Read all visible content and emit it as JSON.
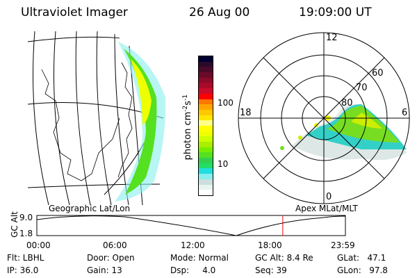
{
  "header": {
    "instrument": "Ultraviolet Imager",
    "date": "26 Aug 00",
    "time": "19:09:00 UT"
  },
  "colorbar": {
    "label": "photon cm",
    "label_exp1": "-2",
    "label_mid": "s",
    "label_exp2": "-1",
    "ticks": [
      "100",
      "10"
    ],
    "colors": [
      "#000033",
      "#2a0a2a",
      "#4a0a2a",
      "#6a0a2a",
      "#8a0a2a",
      "#aa0a2a",
      "#cc0a2a",
      "#ff0000",
      "#ff7700",
      "#ffa500",
      "#ffc800",
      "#ffe600",
      "#ffff88",
      "#ffff00",
      "#eeff00",
      "#ccff00",
      "#aaee00",
      "#77ee00",
      "#55e020",
      "#33d050",
      "#22dd66",
      "#22dddd",
      "#88eeee",
      "#ccdede",
      "#e8f4ee",
      "#ffffff"
    ]
  },
  "left_map": {
    "label": "Geographic Lat/Lon"
  },
  "polar": {
    "label": "Apex MLat/MLT",
    "mlt_labels": [
      "12",
      "0",
      "18",
      "6"
    ],
    "lat_labels": [
      "80",
      "70",
      "60"
    ]
  },
  "altitude_plot": {
    "ylabel": "GC Alt",
    "yticks": [
      "9.0",
      "1.8"
    ],
    "xticks": [
      "00:00",
      "06:00",
      "12:00",
      "18:00",
      "23:59"
    ],
    "current_time_fraction": 0.797,
    "marker_color": "#ff0000"
  },
  "status": {
    "flt": "Flt: LBHL",
    "ip": "IP: 36.0",
    "door": "Door: Open",
    "gain": "Gain: 13",
    "mode": "Mode: Normal",
    "dsp": "Dsp:     4.0",
    "gcalt": "GC Alt: 8.4 Re",
    "seq": "Seq: 39",
    "glat": "GLat:   47.1",
    "glon": "GLon:   97.8"
  }
}
